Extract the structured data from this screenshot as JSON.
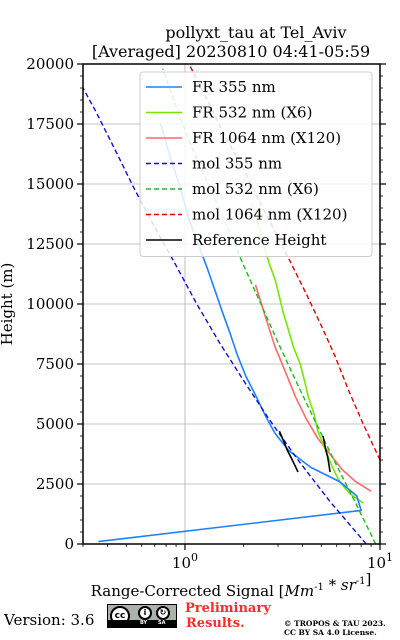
{
  "chart_data": {
    "type": "line",
    "title_line1": "pollyxt_tau at Tel_Aviv",
    "title_line2": "[Averaged] 20230810 04:41-05:59",
    "xlabel": "Range-Corrected Signal [Mm^{-1} * sr^{-1}]",
    "ylabel": "Height (m)",
    "xscale": "log",
    "xlim": [
      0.3,
      10
    ],
    "ylim": [
      0,
      20000
    ],
    "x_tick_labels": [
      "10^0",
      "10^1"
    ],
    "y_ticks": [
      0,
      2500,
      5000,
      7500,
      10000,
      12500,
      15000,
      17500,
      20000
    ],
    "grid": true,
    "legend_position": "top-right",
    "series": [
      {
        "name": "FR 355 nm",
        "color": "#1e80ff",
        "style": "solid",
        "x": [
          0.36,
          8,
          7.6,
          6.2,
          4.4,
          3.4,
          2.9,
          2.6,
          2.3,
          2.05,
          1.85,
          1.7,
          1.55,
          1.42,
          1.3,
          1.18,
          1.05,
          0.95,
          0.85,
          0.75
        ],
        "y": [
          100,
          1400,
          2000,
          2600,
          3200,
          3900,
          4600,
          5300,
          6200,
          7000,
          7900,
          8800,
          9700,
          10600,
          11500,
          12400,
          13500,
          14800,
          16000,
          17500
        ]
      },
      {
        "name": "FR 532 nm (X6)",
        "color": "#78e600",
        "style": "solid",
        "x": [
          8.2,
          7,
          6.2,
          5.7,
          5.2,
          4.8,
          4.6,
          4.3,
          4.1,
          3.9,
          3.6,
          3.4,
          3.2,
          3.05,
          2.9,
          2.7,
          2.55,
          2.4,
          2.2
        ],
        "y": [
          1700,
          2100,
          2600,
          3200,
          4000,
          4700,
          5400,
          6100,
          6800,
          7500,
          8200,
          8900,
          9600,
          10300,
          11000,
          11700,
          12400,
          13200,
          14200
        ]
      },
      {
        "name": "FR 1064 nm (X120)",
        "color": "#ff6a6a",
        "style": "solid",
        "x": [
          9,
          7.5,
          6.4,
          5.6,
          4.8,
          4.2,
          3.7,
          3.3,
          2.9,
          2.6,
          2.3
        ],
        "y": [
          2200,
          2600,
          3100,
          3700,
          4400,
          5200,
          6100,
          7100,
          8200,
          9400,
          10800
        ]
      },
      {
        "name": "mol 355 nm",
        "color": "#1010cc",
        "style": "dashed",
        "x": [
          8.5,
          5.5,
          3.8,
          2.7,
          2.0,
          1.5,
          1.15,
          0.9,
          0.7,
          0.55,
          0.44,
          0.35,
          0.3
        ],
        "y": [
          0,
          1800,
          3500,
          5200,
          6800,
          8400,
          10000,
          11600,
          13200,
          14800,
          16400,
          18000,
          19000
        ]
      },
      {
        "name": "mol 532 nm (X6)",
        "color": "#1fb81f",
        "style": "dashed",
        "x": [
          9.5,
          7.4,
          5.8,
          4.6,
          3.7,
          3.0,
          2.45,
          2.0,
          1.65,
          1.35,
          1.1,
          0.92,
          0.77
        ],
        "y": [
          0,
          1800,
          3500,
          5200,
          6800,
          8400,
          10000,
          11600,
          13200,
          14800,
          16400,
          18000,
          19800
        ]
      },
      {
        "name": "mol 1064 nm (X120)",
        "color": "#e00000",
        "style": "dashed",
        "x": [
          10,
          8.2,
          6.9,
          5.9,
          5.0,
          4.2,
          3.5,
          2.9,
          2.4,
          2.0,
          1.6,
          1.3,
          1.05
        ],
        "y": [
          3500,
          5000,
          6400,
          7800,
          9100,
          10400,
          11700,
          13000,
          14300,
          15600,
          17000,
          18500,
          20000
        ]
      },
      {
        "name": "Reference Height",
        "color": "#000000",
        "style": "solid",
        "segments": [
          {
            "x": [
              3.05,
              3.2,
              3.35,
              3.5,
              3.65,
              3.8
            ],
            "y": [
              4700,
              4300,
              3900,
              3600,
              3300,
              3000
            ]
          },
          {
            "x": [
              5.1,
              5.25,
              5.4,
              5.55
            ],
            "y": [
              4500,
              4000,
              3600,
              3000
            ]
          }
        ]
      }
    ]
  },
  "footer": {
    "version": "Version: 3.6",
    "license_labels": [
      "BY",
      "SA"
    ],
    "prelim_line1": "Preliminary",
    "prelim_line2": "Results.",
    "copyright_line1": "© TROPOS & TAU 2023.",
    "copyright_line2": "CC BY SA 4.0 License."
  }
}
